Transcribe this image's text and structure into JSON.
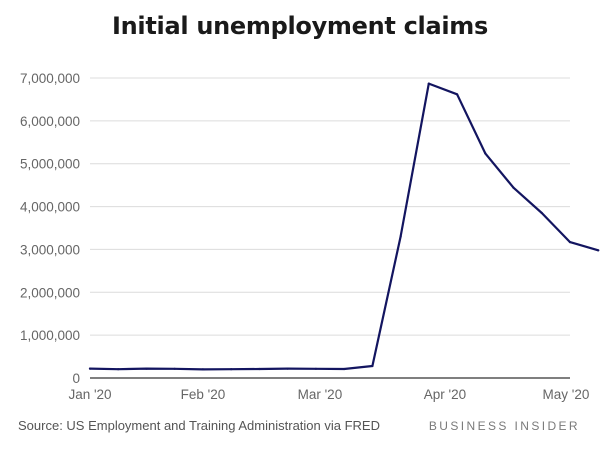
{
  "chart_data": {
    "type": "line",
    "title": "Initial unemployment claims",
    "xlabel": "",
    "ylabel": "",
    "x_ticks": [
      {
        "label": "Jan '20",
        "date": "2020-01-04"
      },
      {
        "label": "Feb '20",
        "date": "2020-02-01"
      },
      {
        "label": "Mar '20",
        "date": "2020-03-01"
      },
      {
        "label": "Apr '20",
        "date": "2020-04-01"
      },
      {
        "label": "May '20",
        "date": "2020-05-01"
      }
    ],
    "y_ticks": [
      {
        "value": 0,
        "label": "0"
      },
      {
        "value": 1000000,
        "label": "1,000,000"
      },
      {
        "value": 2000000,
        "label": "2,000,000"
      },
      {
        "value": 3000000,
        "label": "3,000,000"
      },
      {
        "value": 4000000,
        "label": "4,000,000"
      },
      {
        "value": 5000000,
        "label": "5,000,000"
      },
      {
        "value": 6000000,
        "label": "6,000,000"
      },
      {
        "value": 7000000,
        "label": "7,000,000"
      }
    ],
    "ylim": [
      0,
      7000000
    ],
    "xlim": [
      "2020-01-04",
      "2020-05-02"
    ],
    "grid": "horizontal",
    "series": [
      {
        "color": "#131560",
        "points": [
          {
            "x": "2020-01-04",
            "y": 220000
          },
          {
            "x": "2020-01-11",
            "y": 205000
          },
          {
            "x": "2020-01-18",
            "y": 220000
          },
          {
            "x": "2020-01-25",
            "y": 215000
          },
          {
            "x": "2020-02-01",
            "y": 200000
          },
          {
            "x": "2020-02-08",
            "y": 205000
          },
          {
            "x": "2020-02-15",
            "y": 210000
          },
          {
            "x": "2020-02-22",
            "y": 220000
          },
          {
            "x": "2020-02-29",
            "y": 215000
          },
          {
            "x": "2020-03-07",
            "y": 210000
          },
          {
            "x": "2020-03-14",
            "y": 280000
          },
          {
            "x": "2020-03-21",
            "y": 3300000
          },
          {
            "x": "2020-03-28",
            "y": 6870000
          },
          {
            "x": "2020-04-04",
            "y": 6620000
          },
          {
            "x": "2020-04-11",
            "y": 5240000
          },
          {
            "x": "2020-04-18",
            "y": 4440000
          },
          {
            "x": "2020-04-25",
            "y": 3850000
          },
          {
            "x": "2020-05-02",
            "y": 3170000
          },
          {
            "x": "2020-05-09",
            "y": 2980000
          }
        ]
      }
    ]
  },
  "footer": {
    "source": "Source: US Employment and Training Administration via FRED",
    "brand": "BUSINESS INSIDER"
  },
  "colors": {
    "line": "#131560",
    "grid": "#dcdcdc",
    "tick_text": "#666666",
    "axis": "#333333"
  }
}
